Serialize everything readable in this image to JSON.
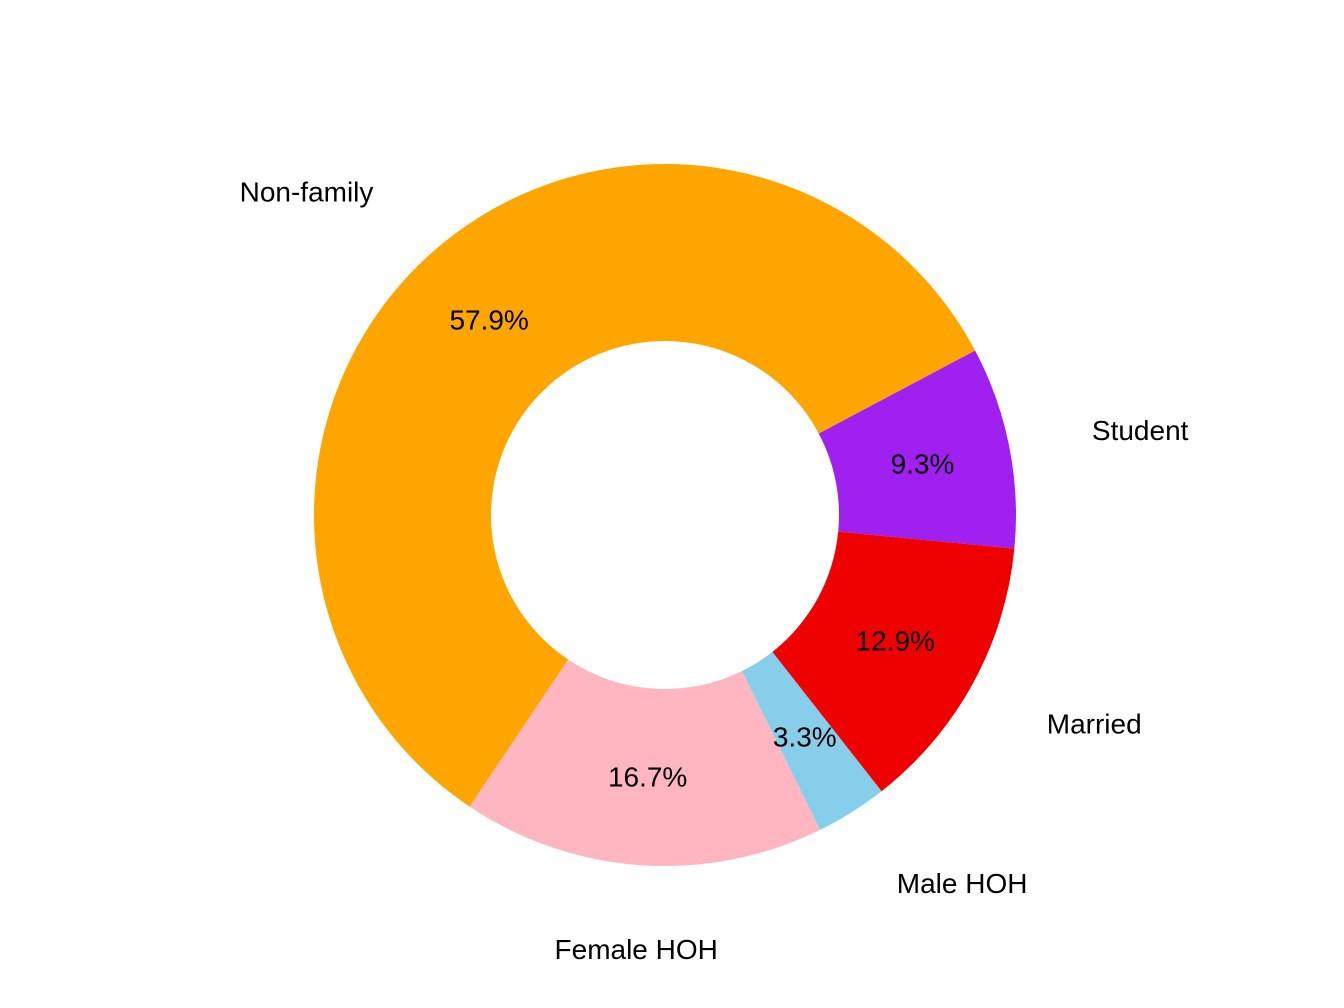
{
  "chart_data": {
    "type": "pie",
    "donut": true,
    "title": "",
    "slices": [
      {
        "label": "Student",
        "value": 9.3,
        "percent_label": "9.3%",
        "color": "#A020F0"
      },
      {
        "label": "Non-family",
        "value": 57.9,
        "percent_label": "57.9%",
        "color": "#FFA500"
      },
      {
        "label": "Female HOH",
        "value": 16.7,
        "percent_label": "16.7%",
        "color": "#FFB6C1"
      },
      {
        "label": "Male HOH",
        "value": 3.3,
        "percent_label": "3.3%",
        "color": "#87CEEB"
      },
      {
        "label": "Married",
        "value": 12.9,
        "percent_label": "12.9%",
        "color": "#EE0000"
      }
    ],
    "legend": "none"
  }
}
